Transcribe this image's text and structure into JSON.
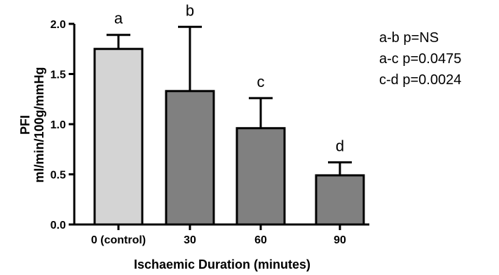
{
  "chart_data": {
    "type": "bar",
    "title": "",
    "xlabel": "Ischaemic Duration (minutes)",
    "ylabel_line1": "PFI",
    "ylabel_line2": "ml/min/100g/mmHg",
    "categories": [
      "0 (control)",
      "30",
      "60",
      "90"
    ],
    "values": [
      1.75,
      1.33,
      0.96,
      0.49
    ],
    "error_upper": [
      0.14,
      0.64,
      0.3,
      0.13
    ],
    "bar_letters": [
      "a",
      "b",
      "c",
      "d"
    ],
    "bar_colors": [
      "#d4d4d4",
      "#808080",
      "#808080",
      "#808080"
    ],
    "ylim": [
      0,
      2.0
    ],
    "yticks": [
      "0.0",
      "0.5",
      "1.0",
      "1.5",
      "2.0"
    ],
    "ytick_values": [
      0,
      0.5,
      1.0,
      1.5,
      2.0
    ],
    "annotations": [
      "a-b  p=NS",
      "a-c  p=0.0475",
      "c-d  p=0.0024"
    ],
    "grid": false,
    "legend": "none"
  }
}
